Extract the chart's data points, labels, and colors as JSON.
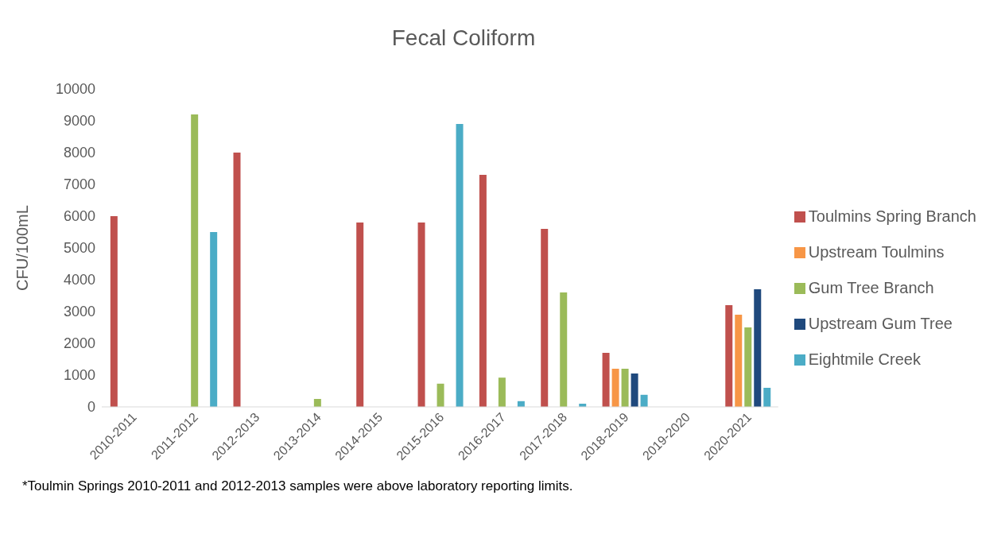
{
  "chart_data": {
    "type": "bar",
    "title": "Fecal Coliform",
    "ylabel": "CFU/100mL",
    "categories": [
      "2010-2011",
      "2011-2012",
      "2012-2013",
      "2013-2014",
      "2014-2015",
      "2015-2016",
      "2016-2017",
      "2017-2018",
      "2018-2019",
      "2019-2020",
      "2020-2021"
    ],
    "series": [
      {
        "name": "Toulmins Spring Branch",
        "color": "#c0504d",
        "values": [
          6000,
          null,
          8000,
          null,
          5800,
          5800,
          7300,
          5600,
          1700,
          null,
          3200
        ]
      },
      {
        "name": "Upstream Toulmins",
        "color": "#f79646",
        "values": [
          null,
          null,
          null,
          null,
          null,
          null,
          null,
          null,
          1200,
          null,
          2900
        ]
      },
      {
        "name": "Gum Tree Branch",
        "color": "#9bbb59",
        "values": [
          null,
          9200,
          null,
          250,
          null,
          730,
          920,
          3600,
          1200,
          null,
          2500
        ]
      },
      {
        "name": "Upstream Gum Tree",
        "color": "#1f497d",
        "values": [
          null,
          null,
          null,
          null,
          null,
          null,
          null,
          null,
          1050,
          null,
          3700
        ]
      },
      {
        "name": "Eightmile Creek",
        "color": "#4bacc6",
        "values": [
          null,
          5500,
          null,
          null,
          null,
          8900,
          180,
          100,
          380,
          null,
          600
        ]
      }
    ],
    "ylim": [
      0,
      10000
    ],
    "yticks": [
      0,
      1000,
      2000,
      3000,
      4000,
      5000,
      6000,
      7000,
      8000,
      9000,
      10000
    ],
    "grid": false,
    "legend": "right",
    "annotations": [
      "*Toulmin Springs 2010-2011 and 2012-2013 samples were above laboratory reporting limits."
    ]
  }
}
